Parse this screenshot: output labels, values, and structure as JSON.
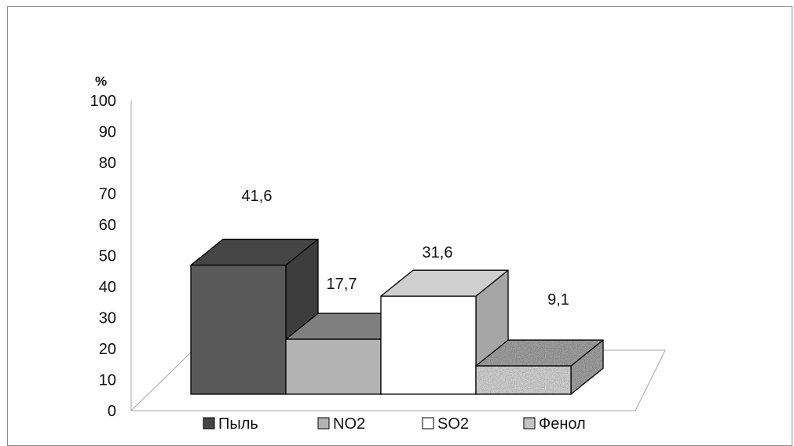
{
  "chart_data": {
    "type": "bar",
    "title": "",
    "xlabel": "",
    "ylabel": "%",
    "ylim": [
      0,
      100
    ],
    "yticks": [
      0,
      10,
      20,
      30,
      40,
      50,
      60,
      70,
      80,
      90,
      100
    ],
    "grid": false,
    "legend_position": "bottom",
    "categories": [
      "Пыль",
      "NO2",
      "SO2",
      "Фенол"
    ],
    "values": [
      41.6,
      17.7,
      31.6,
      9.1
    ],
    "data_labels": [
      "41,6",
      "17,7",
      "31,6",
      "9,1"
    ],
    "series_styles": [
      {
        "name": "Пыль",
        "front": "#595959",
        "top": "#454545",
        "side": "#3d3d3d"
      },
      {
        "name": "NO2",
        "front": "#b3b3b3",
        "top": "#7f7f7f",
        "side": "#8c8c8c"
      },
      {
        "name": "SO2",
        "front": "#ffffff",
        "top": "#cfcfcf",
        "side": "#a6a6a6"
      },
      {
        "name": "Фенол",
        "front": "#bdbdbd",
        "top": "#7a7a7a",
        "side": "#5c5c5c",
        "texture": "granite"
      }
    ]
  }
}
